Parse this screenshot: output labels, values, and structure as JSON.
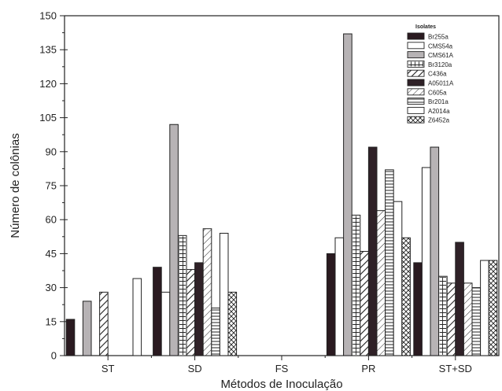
{
  "chart_data": {
    "type": "bar",
    "xlabel": "Métodos de Inoculação",
    "ylabel": "Número de colônias",
    "ylim": [
      0,
      150
    ],
    "yticks": [
      0,
      15,
      30,
      45,
      60,
      75,
      90,
      105,
      120,
      135,
      150
    ],
    "categories": [
      "ST",
      "SD",
      "FS",
      "PR",
      "ST+SD"
    ],
    "legend": {
      "title": "Isolates",
      "placement": "top-right"
    },
    "series": [
      {
        "name": "Br255a",
        "values": [
          16,
          39,
          0,
          45,
          41
        ]
      },
      {
        "name": "CMS54a",
        "values": [
          0,
          28,
          0,
          52,
          83
        ]
      },
      {
        "name": "CMS61A",
        "values": [
          24,
          102,
          0,
          142,
          92
        ]
      },
      {
        "name": "Br3120a",
        "values": [
          0,
          53,
          0,
          62,
          35
        ]
      },
      {
        "name": "C436a",
        "values": [
          28,
          38,
          0,
          46,
          32
        ]
      },
      {
        "name": "A05011A",
        "values": [
          0,
          41,
          0,
          92,
          50
        ]
      },
      {
        "name": "C605a",
        "values": [
          0,
          56,
          0,
          64,
          32
        ]
      },
      {
        "name": "Br201a",
        "values": [
          0,
          21,
          0,
          82,
          30
        ]
      },
      {
        "name": "A2014a",
        "values": [
          34,
          54,
          0,
          68,
          42
        ]
      },
      {
        "name": "Z6452a",
        "values": [
          0,
          28,
          0,
          52,
          42
        ]
      }
    ]
  }
}
